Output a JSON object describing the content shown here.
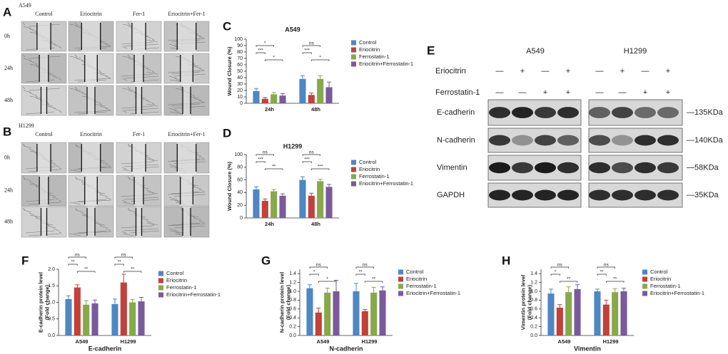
{
  "panels": {
    "labels": [
      "A",
      "B",
      "C",
      "D",
      "E",
      "F",
      "G",
      "H"
    ]
  },
  "panel_a": {
    "cell_line": "A549",
    "columns": [
      "Control",
      "Eriocitrin",
      "Fer-1",
      "Eriocitrin+Fer-1"
    ],
    "rows": [
      "0h",
      "24h",
      "48h"
    ]
  },
  "panel_b": {
    "cell_line": "H1299",
    "columns": [
      "Control",
      "Eriocitrin",
      "Fer-1",
      "Eriocitrin+Fer-1"
    ],
    "rows": [
      "0h",
      "24h",
      "48h"
    ]
  },
  "panel_e": {
    "cell_lines": [
      "A549",
      "H1299"
    ],
    "treatments": [
      {
        "name": "Eriocitrin",
        "signs": [
          "—",
          "+",
          "—",
          "+"
        ]
      },
      {
        "name": "Ferrostatin-1",
        "signs": [
          "—",
          "—",
          "+",
          "+"
        ]
      }
    ],
    "proteins": [
      {
        "name": "E-cadherin",
        "size": "—135KDa"
      },
      {
        "name": "N-cadherin",
        "size": "—140KDa"
      },
      {
        "name": "Vimentin",
        "size": "—58KDa"
      },
      {
        "name": "GAPDH",
        "size": "—35KDa"
      }
    ]
  },
  "chart_data": [
    {
      "type": "bar",
      "title": "A549",
      "y_label": [
        "Wound Closure (%)"
      ],
      "categories": [
        "24h",
        "48h"
      ],
      "series": [
        {
          "name": "Control",
          "color": "#4e87c2",
          "values": [
            19,
            38
          ],
          "errors": [
            4,
            5
          ]
        },
        {
          "name": "Eriocitrin",
          "color": "#c2413a",
          "values": [
            7,
            13
          ],
          "errors": [
            2,
            3
          ]
        },
        {
          "name": "Ferrostatin-1",
          "color": "#86a94a",
          "values": [
            14,
            38
          ],
          "errors": [
            3,
            5
          ]
        },
        {
          "name": "Eriocitrin+Ferrostatin-1",
          "color": "#7a5a9c",
          "values": [
            12,
            25
          ],
          "errors": [
            3,
            8
          ]
        }
      ],
      "comparisons": [
        {
          "category": 0,
          "pair": [
            0,
            2
          ],
          "label": "*"
        },
        {
          "category": 0,
          "pair": [
            0,
            1
          ],
          "label": "***"
        },
        {
          "category": 0,
          "pair": [
            1,
            3
          ],
          "label": "*"
        },
        {
          "category": 1,
          "pair": [
            0,
            2
          ],
          "label": "ns"
        },
        {
          "category": 1,
          "pair": [
            0,
            1
          ],
          "label": "***"
        },
        {
          "category": 1,
          "pair": [
            1,
            3
          ],
          "label": "*"
        }
      ],
      "ylim": [
        0,
        100
      ],
      "yticks": [
        0,
        10,
        20,
        30,
        40,
        50,
        60,
        70,
        80,
        90,
        100
      ]
    },
    {
      "type": "bar",
      "title": "H1299",
      "y_label": [
        "Wound Closure (%)"
      ],
      "categories": [
        "24h",
        "48h"
      ],
      "series": [
        {
          "name": "Control",
          "color": "#4e87c2",
          "values": [
            45,
            60
          ],
          "errors": [
            4,
            5
          ]
        },
        {
          "name": "Eriocitrin",
          "color": "#c2413a",
          "values": [
            27,
            35
          ],
          "errors": [
            3,
            4
          ]
        },
        {
          "name": "Ferrostatin-1",
          "color": "#86a94a",
          "values": [
            42,
            58
          ],
          "errors": [
            3,
            3
          ]
        },
        {
          "name": "Eriocitrin+Ferrostatin-1",
          "color": "#7a5a9c",
          "values": [
            35,
            49
          ],
          "errors": [
            3,
            4
          ]
        }
      ],
      "comparisons": [
        {
          "category": 0,
          "pair": [
            0,
            2
          ],
          "label": "ns"
        },
        {
          "category": 0,
          "pair": [
            0,
            1
          ],
          "label": "***"
        },
        {
          "category": 0,
          "pair": [
            1,
            3
          ],
          "label": "**"
        },
        {
          "category": 1,
          "pair": [
            0,
            2
          ],
          "label": "ns"
        },
        {
          "category": 1,
          "pair": [
            0,
            1
          ],
          "label": "***"
        },
        {
          "category": 1,
          "pair": [
            1,
            3
          ],
          "label": "***"
        }
      ],
      "ylim": [
        0,
        100
      ],
      "yticks": [
        0,
        20,
        40,
        60,
        80,
        100
      ]
    },
    {
      "type": "bar",
      "x_label": "E-cadherin",
      "y_label": [
        "E-cadherin protein level",
        "(Fold change)"
      ],
      "categories": [
        "A549",
        "H1299"
      ],
      "series": [
        {
          "name": "Control",
          "color": "#4e87c2",
          "values": [
            1.1,
            0.95
          ],
          "errors": [
            0.1,
            0.15
          ]
        },
        {
          "name": "Eriocitrin",
          "color": "#c2413a",
          "values": [
            1.45,
            1.6
          ],
          "errors": [
            0.08,
            0.25
          ]
        },
        {
          "name": "Ferrostatin-1",
          "color": "#86a94a",
          "values": [
            0.93,
            1.0
          ],
          "errors": [
            0.12,
            0.08
          ]
        },
        {
          "name": "Eriocitrin+Ferrostatin-1",
          "color": "#7a5a9c",
          "values": [
            0.97,
            1.03
          ],
          "errors": [
            0.1,
            0.12
          ]
        }
      ],
      "comparisons": [
        {
          "category": 0,
          "pair": [
            0,
            2
          ],
          "label": "ns"
        },
        {
          "category": 0,
          "pair": [
            0,
            1
          ],
          "label": "**"
        },
        {
          "category": 0,
          "pair": [
            1,
            3
          ],
          "label": "**"
        },
        {
          "category": 1,
          "pair": [
            0,
            2
          ],
          "label": "ns"
        },
        {
          "category": 1,
          "pair": [
            0,
            1
          ],
          "label": "**"
        },
        {
          "category": 1,
          "pair": [
            1,
            3
          ],
          "label": "**"
        }
      ],
      "ylim": [
        0,
        2.0
      ],
      "yticks": [
        {
          "value": 0,
          "label": "0.0"
        },
        0.5,
        {
          "value": 1,
          "label": "1.0"
        },
        1.5,
        {
          "value": 2,
          "label": "2.0"
        }
      ]
    },
    {
      "type": "bar",
      "x_label": "N-cadherin",
      "y_label": [
        "N-cadherin protein level",
        "(Fold change)"
      ],
      "categories": [
        "A549",
        "H1299"
      ],
      "series": [
        {
          "name": "Control",
          "color": "#4e87c2",
          "values": [
            1.07,
            1.0
          ],
          "errors": [
            0.08,
            0.18
          ]
        },
        {
          "name": "Eriocitrin",
          "color": "#c2413a",
          "values": [
            0.52,
            0.55
          ],
          "errors": [
            0.1,
            0.04
          ]
        },
        {
          "name": "Ferrostatin-1",
          "color": "#86a94a",
          "values": [
            0.97,
            0.97
          ],
          "errors": [
            0.1,
            0.12
          ]
        },
        {
          "name": "Eriocitrin+Ferrostatin-1",
          "color": "#7a5a9c",
          "values": [
            1.0,
            1.02
          ],
          "errors": [
            0.25,
            0.08
          ]
        }
      ],
      "comparisons": [
        {
          "category": 0,
          "pair": [
            0,
            2
          ],
          "label": "ns"
        },
        {
          "category": 0,
          "pair": [
            0,
            1
          ],
          "label": "*"
        },
        {
          "category": 0,
          "pair": [
            1,
            3
          ],
          "label": "*"
        },
        {
          "category": 1,
          "pair": [
            0,
            2
          ],
          "label": "ns"
        },
        {
          "category": 1,
          "pair": [
            0,
            1
          ],
          "label": "**"
        },
        {
          "category": 1,
          "pair": [
            1,
            3
          ],
          "label": "**"
        }
      ],
      "ylim": [
        0,
        1.5
      ],
      "yticks": [
        {
          "value": 0,
          "label": "0.0"
        },
        0.2,
        0.4,
        0.6,
        0.8,
        {
          "value": 1,
          "label": "1.0"
        },
        1.2,
        1.4
      ]
    },
    {
      "type": "bar",
      "x_label": "Vimentin",
      "y_label": [
        "Vimentin protein level",
        "(Fold change)"
      ],
      "categories": [
        "A549",
        "H1299"
      ],
      "series": [
        {
          "name": "Control",
          "color": "#4e87c2",
          "values": [
            0.95,
            1.0
          ],
          "errors": [
            0.1,
            0.05
          ]
        },
        {
          "name": "Eriocitrin",
          "color": "#c2413a",
          "values": [
            0.63,
            0.7
          ],
          "errors": [
            0.07,
            0.1
          ]
        },
        {
          "name": "Ferrostatin-1",
          "color": "#86a94a",
          "values": [
            0.98,
            0.98
          ],
          "errors": [
            0.12,
            0.08
          ]
        },
        {
          "name": "Eriocitrin+Ferrostatin-1",
          "color": "#7a5a9c",
          "values": [
            1.05,
            1.0
          ],
          "errors": [
            0.1,
            0.07
          ]
        }
      ],
      "comparisons": [
        {
          "category": 0,
          "pair": [
            0,
            2
          ],
          "label": "ns"
        },
        {
          "category": 0,
          "pair": [
            0,
            1
          ],
          "label": "*"
        },
        {
          "category": 0,
          "pair": [
            1,
            3
          ],
          "label": "**"
        },
        {
          "category": 1,
          "pair": [
            0,
            2
          ],
          "label": "ns"
        },
        {
          "category": 1,
          "pair": [
            0,
            1
          ],
          "label": "**"
        },
        {
          "category": 1,
          "pair": [
            1,
            3
          ],
          "label": "**"
        }
      ],
      "ylim": [
        0,
        1.5
      ],
      "yticks": [
        {
          "value": 0,
          "label": "0.0"
        },
        0.2,
        0.4,
        0.6,
        0.8,
        {
          "value": 1,
          "label": "1.0"
        },
        1.2,
        1.4
      ]
    }
  ]
}
